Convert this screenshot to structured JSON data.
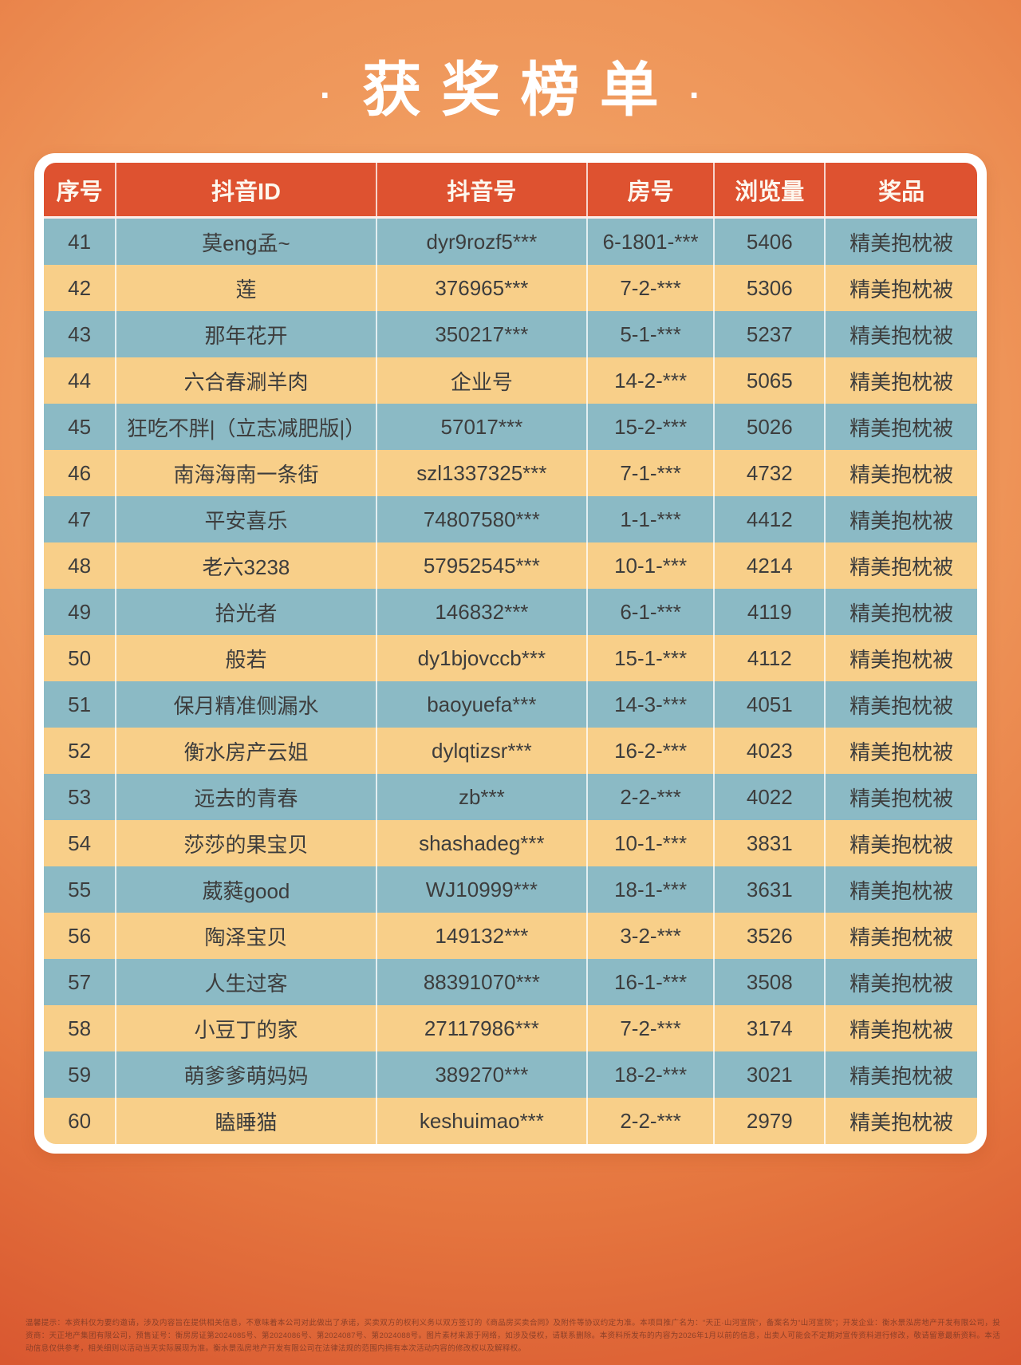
{
  "page": {
    "title": "获奖榜单",
    "title_dot": "·"
  },
  "table": {
    "headers": [
      "序号",
      "抖音ID",
      "抖音号",
      "房号",
      "浏览量",
      "奖品"
    ],
    "rows": [
      {
        "no": "41",
        "douyin_id": "莫eng孟~",
        "account": "dyr9rozf5***",
        "room": "6-1801-***",
        "views": "5406",
        "prize": "精美抱枕被"
      },
      {
        "no": "42",
        "douyin_id": "莲",
        "account": "376965***",
        "room": "7-2-***",
        "views": "5306",
        "prize": "精美抱枕被"
      },
      {
        "no": "43",
        "douyin_id": "那年花开",
        "account": "350217***",
        "room": "5-1-***",
        "views": "5237",
        "prize": "精美抱枕被"
      },
      {
        "no": "44",
        "douyin_id": "六合春涮羊肉",
        "account": "企业号",
        "room": "14-2-***",
        "views": "5065",
        "prize": "精美抱枕被"
      },
      {
        "no": "45",
        "douyin_id": "狂吃不胖|（立志减肥版|）",
        "account": "57017***",
        "room": "15-2-***",
        "views": "5026",
        "prize": "精美抱枕被"
      },
      {
        "no": "46",
        "douyin_id": "南海海南一条街",
        "account": "szl1337325***",
        "room": "7-1-***",
        "views": "4732",
        "prize": "精美抱枕被"
      },
      {
        "no": "47",
        "douyin_id": "平安喜乐",
        "account": "74807580***",
        "room": "1-1-***",
        "views": "4412",
        "prize": "精美抱枕被"
      },
      {
        "no": "48",
        "douyin_id": "老六3238",
        "account": "57952545***",
        "room": "10-1-***",
        "views": "4214",
        "prize": "精美抱枕被"
      },
      {
        "no": "49",
        "douyin_id": "拾光者",
        "account": "146832***",
        "room": "6-1-***",
        "views": "4119",
        "prize": "精美抱枕被"
      },
      {
        "no": "50",
        "douyin_id": "般若",
        "account": "dy1bjovccb***",
        "room": "15-1-***",
        "views": "4112",
        "prize": "精美抱枕被"
      },
      {
        "no": "51",
        "douyin_id": "保月精准侧漏水",
        "account": "baoyuefa***",
        "room": "14-3-***",
        "views": "4051",
        "prize": "精美抱枕被"
      },
      {
        "no": "52",
        "douyin_id": "衡水房产云姐",
        "account": "dylqtizsr***",
        "room": "16-2-***",
        "views": "4023",
        "prize": "精美抱枕被"
      },
      {
        "no": "53",
        "douyin_id": "远去的青春",
        "account": "zb***",
        "room": "2-2-***",
        "views": "4022",
        "prize": "精美抱枕被"
      },
      {
        "no": "54",
        "douyin_id": "莎莎的果宝贝",
        "account": "shashadeg***",
        "room": "10-1-***",
        "views": "3831",
        "prize": "精美抱枕被"
      },
      {
        "no": "55",
        "douyin_id": "葳蕤good",
        "account": "WJ10999***",
        "room": "18-1-***",
        "views": "3631",
        "prize": "精美抱枕被"
      },
      {
        "no": "56",
        "douyin_id": "陶泽宝贝",
        "account": "149132***",
        "room": "3-2-***",
        "views": "3526",
        "prize": "精美抱枕被"
      },
      {
        "no": "57",
        "douyin_id": "人生过客",
        "account": "88391070***",
        "room": "16-1-***",
        "views": "3508",
        "prize": "精美抱枕被"
      },
      {
        "no": "58",
        "douyin_id": "小豆丁的家",
        "account": "27117986***",
        "room": "7-2-***",
        "views": "3174",
        "prize": "精美抱枕被"
      },
      {
        "no": "59",
        "douyin_id": "萌爹爹萌妈妈",
        "account": "389270***",
        "room": "18-2-***",
        "views": "3021",
        "prize": "精美抱枕被"
      },
      {
        "no": "60",
        "douyin_id": "瞌睡猫",
        "account": "keshuimao***",
        "room": "2-2-***",
        "views": "2979",
        "prize": "精美抱枕被"
      }
    ]
  },
  "disclaimer": "温馨提示：本资料仅为要约邀请，涉及内容旨在提供相关信息，不意味着本公司对此做出了承诺，买卖双方的权利义务以双方签订的《商品房买卖合同》及附件等协议约定为准。本项目推广名为：“天正·山河宣院”，备案名为“山河宣院”；开发企业：衡水景泓房地产开发有限公司，投资商：天正地产集团有限公司，预售证号：衡房房证第2024085号、第2024086号、第2024087号、第2024088号。图片素材来源于网络，如涉及侵权，请联系删除。本资料所发布的内容为2026年1月以前的信息，出卖人可能会不定期对宣传资料进行修改，敬请留意最新资料。本活动信息仅供参考，相关细则以活动当天实际展现为准。衡水景泓房地产开发有限公司在法律法规的范围内拥有本次活动内容的修改权以及解释权。",
  "colors": {
    "header_bg": "#de5230",
    "row_blue": "#8bbac5",
    "row_yellow": "#f8cf89",
    "frame": "#ffffff",
    "bg_center": "#f3aa6d",
    "bg_edge": "#d7532e",
    "cell_text": "#3d3d3d"
  }
}
